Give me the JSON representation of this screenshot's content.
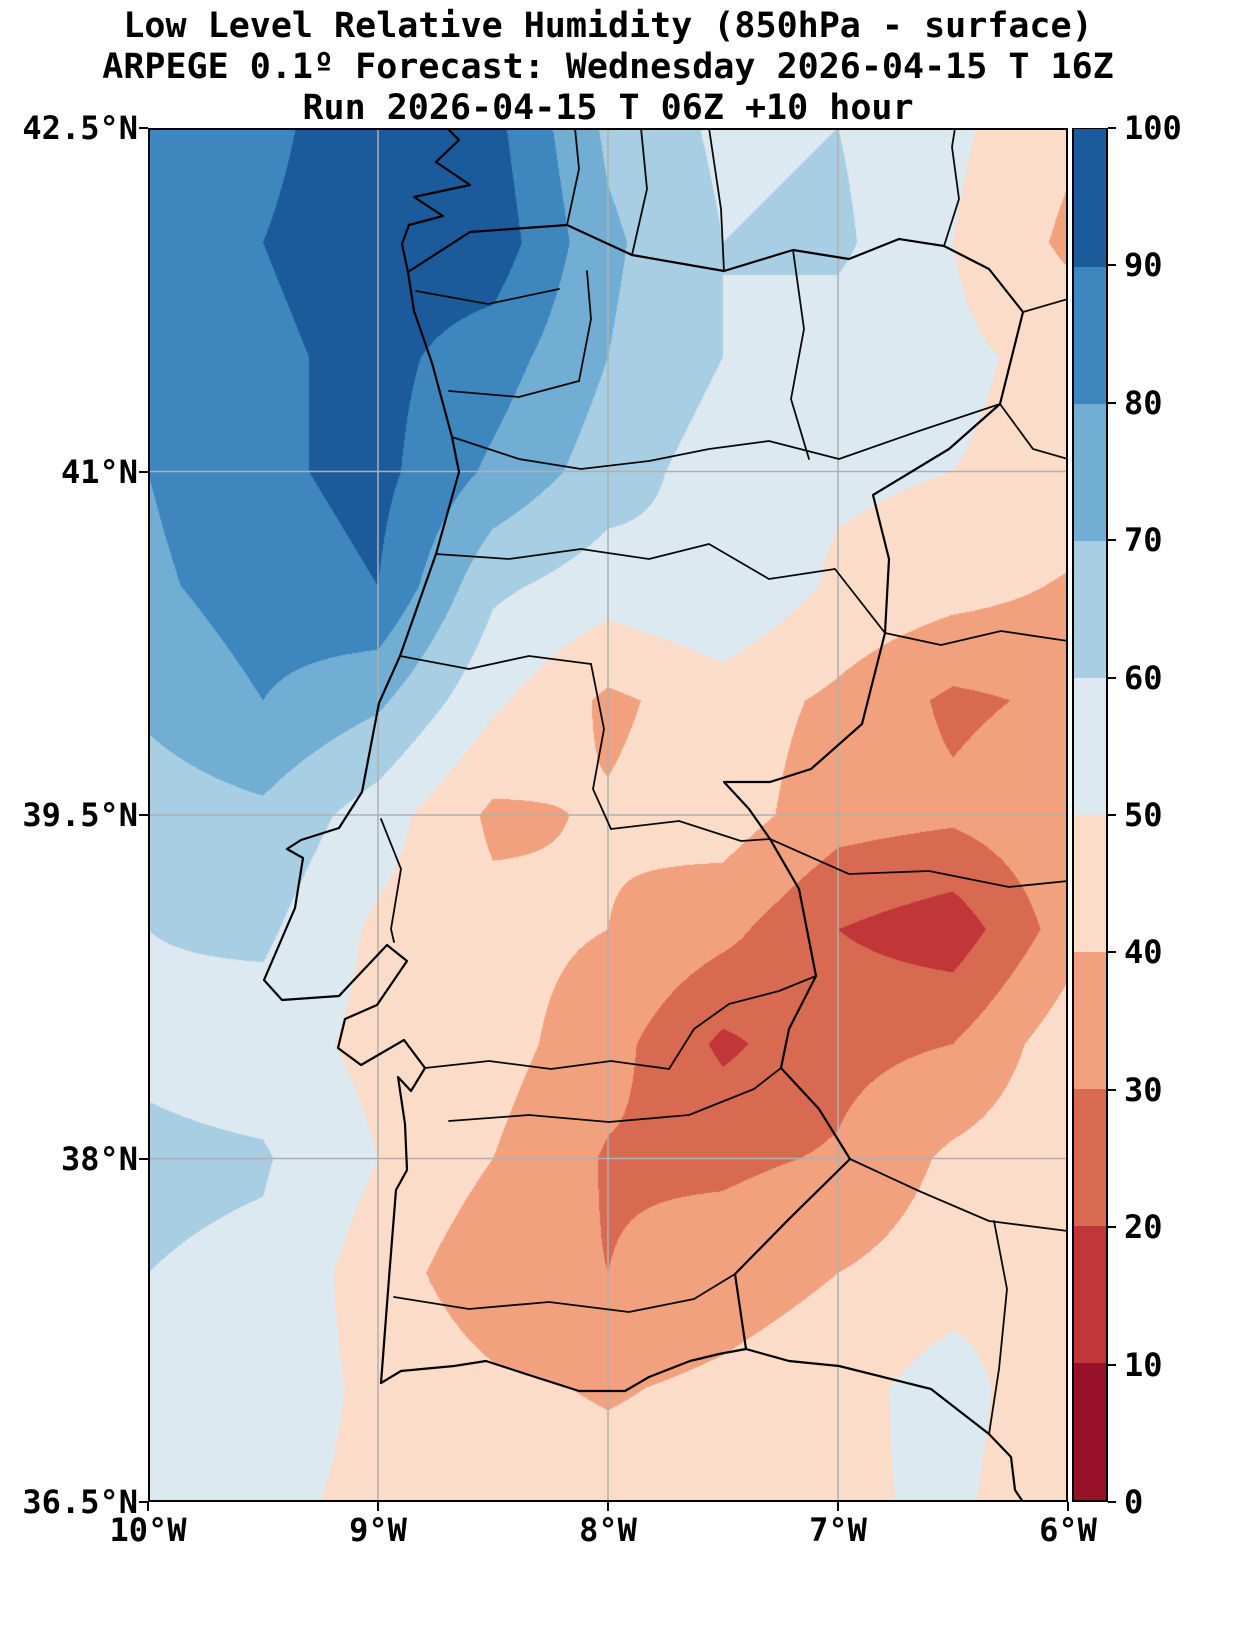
{
  "title": {
    "line1": "Low Level Relative Humidity (850hPa - surface)",
    "line2": "ARPEGE 0.1º Forecast: Wednesday 2026-04-15 T 16Z",
    "line3": "Run 2026-04-15 T 06Z +10 hour"
  },
  "axes": {
    "y_ticks": [
      "42.5°N",
      "41°N",
      "39.5°N",
      "38°N",
      "36.5°N"
    ],
    "y_values": [
      42.5,
      41,
      39.5,
      38,
      36.5
    ],
    "x_ticks": [
      "10°W",
      "9°W",
      "8°W",
      "7°W",
      "6°W"
    ],
    "x_values": [
      -10,
      -9,
      -8,
      -7,
      -6
    ],
    "lat_range": [
      36.5,
      42.5
    ],
    "lon_range": [
      -10,
      -6
    ],
    "gridline_lats": [
      41,
      39.5,
      38
    ],
    "gridline_lons": [
      -9,
      -8,
      -7
    ],
    "gridline_color": "#b0b0b0"
  },
  "colorbar": {
    "ticks": [
      0,
      10,
      20,
      30,
      40,
      50,
      60,
      70,
      80,
      90,
      100
    ],
    "colors": [
      "#971226",
      "#c13639",
      "#d96a52",
      "#f2a17f",
      "#fbdcc8",
      "#dce9f1",
      "#a8cee3",
      "#72aed3",
      "#3e86be",
      "#1b5a9b"
    ]
  },
  "chart_data": {
    "type": "heatmap",
    "title": "Low Level Relative Humidity (850hPa - surface)",
    "model": "ARPEGE 0.1º",
    "valid_time": "Wednesday 2026-04-15 T 16Z",
    "run": "2026-04-15 T 06Z +10 hour",
    "variable": "relative humidity (%)",
    "levels": [
      0,
      10,
      20,
      30,
      40,
      50,
      60,
      70,
      80,
      90,
      100
    ],
    "lat_range": [
      36.5,
      42.5
    ],
    "lon_range": [
      -10,
      -6
    ],
    "legend_position": "right",
    "grid": {
      "lats": [
        42.5,
        42.0,
        41.5,
        41.0,
        40.5,
        40.0,
        39.5,
        39.0,
        38.5,
        38.0,
        37.5,
        37.0,
        36.5
      ],
      "lons": [
        -10,
        -9.5,
        -9.0,
        -8.5,
        -8.0,
        -7.5,
        -7.0,
        -6.5,
        -6.0
      ],
      "values": [
        [
          85,
          88,
          95,
          93,
          68,
          58,
          60,
          52,
          42
        ],
        [
          85,
          90,
          95,
          96,
          72,
          60,
          62,
          50,
          38
        ],
        [
          82,
          88,
          93,
          85,
          70,
          60,
          55,
          52,
          47
        ],
        [
          80,
          88,
          93,
          78,
          65,
          55,
          52,
          50,
          47
        ],
        [
          78,
          85,
          90,
          62,
          55,
          60,
          48,
          44,
          39
        ],
        [
          72,
          80,
          72,
          52,
          38,
          45,
          38,
          28,
          32
        ],
        [
          65,
          68,
          55,
          38,
          41,
          45,
          34,
          32,
          38
        ],
        [
          60,
          62,
          48,
          43,
          40,
          33,
          20,
          14,
          35
        ],
        [
          58,
          55,
          47,
          44,
          34,
          18,
          27,
          30,
          46
        ],
        [
          62,
          61,
          50,
          40,
          29,
          28,
          31,
          42,
          47
        ],
        [
          60,
          58,
          45,
          33,
          30,
          35,
          40,
          45,
          48
        ],
        [
          58,
          55,
          48,
          42,
          39,
          42,
          46,
          55,
          40
        ],
        [
          55,
          52,
          48,
          45,
          44,
          45,
          48,
          52,
          42
        ]
      ]
    }
  }
}
